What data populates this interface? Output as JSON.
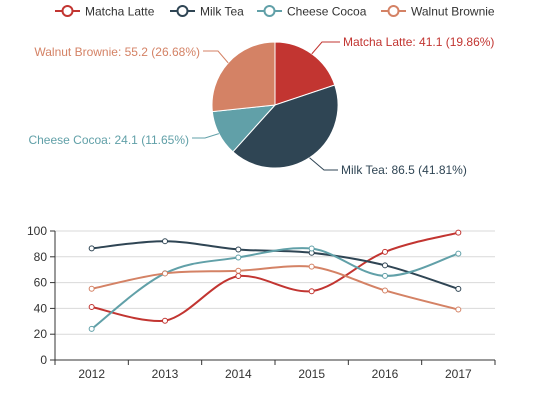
{
  "chart_data": [
    {
      "type": "pie",
      "categories": [
        "Matcha Latte",
        "Milk Tea",
        "Cheese Cocoa",
        "Walnut Brownie"
      ],
      "values": [
        41.1,
        86.5,
        24.1,
        55.2
      ],
      "slice_labels": [
        "Matcha Latte: 41.1 (19.86%)",
        "Milk Tea: 86.5 (41.81%)",
        "Cheese Cocoa: 24.1 (11.65%)",
        "Walnut Brownie: 55.2 (26.68%)"
      ],
      "colors": [
        "#c23531",
        "#2f4554",
        "#61a0a8",
        "#d48265"
      ],
      "legend_position": "top"
    },
    {
      "type": "line",
      "x": [
        "2012",
        "2013",
        "2014",
        "2015",
        "2016",
        "2017"
      ],
      "series": [
        {
          "name": "Matcha Latte",
          "color": "#c23531",
          "values": [
            41.1,
            30.4,
            65.1,
            53.3,
            83.8,
            98.7
          ]
        },
        {
          "name": "Milk Tea",
          "color": "#2f4554",
          "values": [
            86.5,
            92.1,
            85.7,
            83.1,
            73.4,
            55.1
          ]
        },
        {
          "name": "Cheese Cocoa",
          "color": "#61a0a8",
          "values": [
            24.1,
            67.2,
            79.5,
            86.4,
            65.2,
            82.5
          ]
        },
        {
          "name": "Walnut Brownie",
          "color": "#d48265",
          "values": [
            55.2,
            67.1,
            69.2,
            72.4,
            53.9,
            39.1
          ]
        }
      ],
      "y_ticks": [
        "0",
        "20",
        "40",
        "60",
        "80",
        "100"
      ],
      "ylim": [
        0,
        100
      ],
      "grid": true,
      "smooth": true
    }
  ]
}
